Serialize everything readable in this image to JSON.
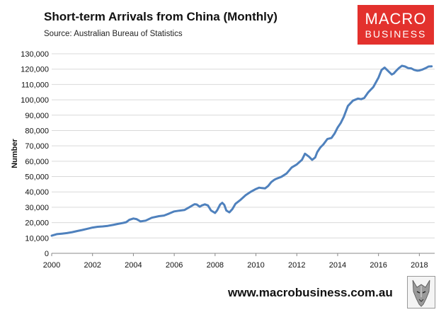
{
  "header": {
    "title": "Short-term Arrivals from China (Monthly)",
    "source": "Source: Australian Bureau of Statistics"
  },
  "logo": {
    "line1": "MACRO",
    "line2": "BUSINESS",
    "color": "#e3312d"
  },
  "footer": {
    "url": "www.macrobusiness.com.au"
  },
  "chart_data": {
    "type": "line",
    "title": "Short-term Arrivals from China (Monthly)",
    "ylabel": "Number",
    "xlabel": "",
    "xlim": [
      2000,
      2018.75
    ],
    "ylim": [
      0,
      130000
    ],
    "y_ticks": [
      0,
      10000,
      20000,
      30000,
      40000,
      50000,
      60000,
      70000,
      80000,
      90000,
      100000,
      110000,
      120000,
      130000
    ],
    "y_tick_labels": [
      "0",
      "10,000",
      "20,000",
      "30,000",
      "40,000",
      "50,000",
      "60,000",
      "70,000",
      "80,000",
      "90,000",
      "100,000",
      "110,000",
      "120,000",
      "130,000"
    ],
    "x_ticks": [
      2000,
      2002,
      2004,
      2006,
      2008,
      2010,
      2012,
      2014,
      2016,
      2018
    ],
    "x_tick_labels": [
      "2000",
      "2002",
      "2004",
      "2006",
      "2008",
      "2010",
      "2012",
      "2014",
      "2016",
      "2018"
    ],
    "grid": "horizontal",
    "line_color": "#4f81bd",
    "series": [
      {
        "x": [
          2000.0,
          2000.25,
          2000.5,
          2000.75,
          2001.0,
          2001.25,
          2001.5,
          2001.75,
          2002.0,
          2002.25,
          2002.5,
          2002.75,
          2003.0,
          2003.25,
          2003.5,
          2003.65,
          2003.8,
          2004.0,
          2004.15,
          2004.35,
          2004.6,
          2004.9,
          2005.25,
          2005.5,
          2005.75,
          2006.0,
          2006.25,
          2006.5,
          2006.75,
          2006.9,
          2007.0,
          2007.1,
          2007.25,
          2007.35,
          2007.5,
          2007.65,
          2007.8,
          2008.0,
          2008.1,
          2008.25,
          2008.35,
          2008.45,
          2008.55,
          2008.7,
          2008.85,
          2009.0,
          2009.25,
          2009.5,
          2009.75,
          2010.0,
          2010.15,
          2010.3,
          2010.45,
          2010.6,
          2010.75,
          2010.9,
          2011.0,
          2011.25,
          2011.5,
          2011.75,
          2012.0,
          2012.25,
          2012.4,
          2012.6,
          2012.75,
          2012.9,
          2013.0,
          2013.15,
          2013.3,
          2013.5,
          2013.7,
          2013.85,
          2014.0,
          2014.15,
          2014.3,
          2014.5,
          2014.75,
          2015.0,
          2015.15,
          2015.3,
          2015.5,
          2015.75,
          2016.0,
          2016.15,
          2016.3,
          2016.5,
          2016.65,
          2016.75,
          2016.85,
          2017.0,
          2017.15,
          2017.3,
          2017.45,
          2017.6,
          2017.75,
          2017.9,
          2018.0,
          2018.15,
          2018.3,
          2018.45,
          2018.6
        ],
        "y": [
          11500,
          12500,
          12800,
          13200,
          13800,
          14500,
          15200,
          16000,
          16800,
          17300,
          17500,
          17900,
          18500,
          19200,
          19800,
          20300,
          21800,
          22700,
          22300,
          20800,
          21300,
          23200,
          24200,
          24600,
          25900,
          27300,
          27800,
          28200,
          30100,
          31300,
          32000,
          31800,
          30400,
          31200,
          31900,
          31200,
          27900,
          26300,
          28000,
          31800,
          32900,
          31600,
          27900,
          26700,
          28900,
          32300,
          34900,
          37900,
          40100,
          41900,
          42800,
          42500,
          42300,
          43900,
          46400,
          47900,
          48600,
          49900,
          52000,
          55900,
          57900,
          60900,
          64900,
          62900,
          60900,
          62400,
          65900,
          68900,
          70900,
          74500,
          75200,
          78000,
          81900,
          84900,
          88900,
          96000,
          99500,
          100800,
          100400,
          101200,
          104900,
          108400,
          114500,
          119500,
          121000,
          118400,
          116500,
          117200,
          118700,
          120700,
          122200,
          121700,
          120700,
          120500,
          119500,
          119000,
          119100,
          119700,
          120600,
          121700,
          121800
        ]
      }
    ]
  }
}
